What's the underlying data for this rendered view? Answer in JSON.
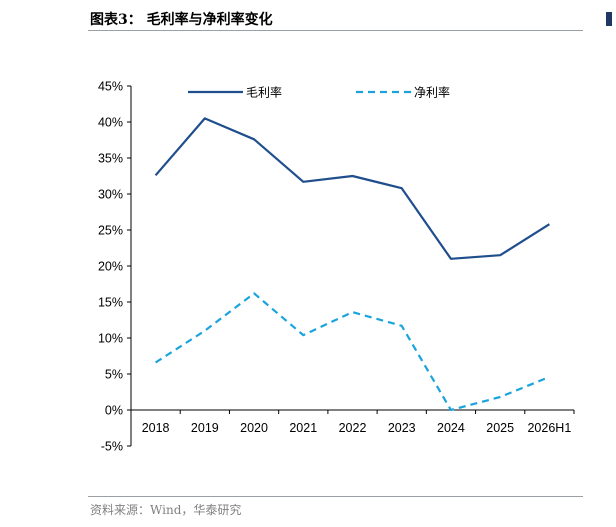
{
  "header": {
    "title": "图表3：  毛利率与净利率变化"
  },
  "footer": {
    "source": "资料来源：Wind，华泰研究"
  },
  "chart_data": {
    "type": "line",
    "categories": [
      "2018",
      "2019",
      "2020",
      "2021",
      "2022",
      "2023",
      "2024",
      "2025",
      "2026H1"
    ],
    "series": [
      {
        "name": "毛利率",
        "values": [
          32.6,
          40.5,
          37.6,
          31.7,
          32.5,
          30.8,
          21.0,
          21.5,
          25.8
        ],
        "color": "#1f4e8c",
        "style": "solid"
      },
      {
        "name": "净利率",
        "values": [
          6.6,
          11.0,
          16.2,
          10.4,
          13.6,
          11.7,
          0.0,
          1.8,
          4.6
        ],
        "color": "#1aa3dd",
        "style": "dashed"
      }
    ],
    "yticks": [
      "-5%",
      "0%",
      "5%",
      "10%",
      "15%",
      "20%",
      "25%",
      "30%",
      "35%",
      "40%",
      "45%"
    ],
    "ylim": [
      -5,
      45
    ],
    "grid": false,
    "legend": "top"
  }
}
